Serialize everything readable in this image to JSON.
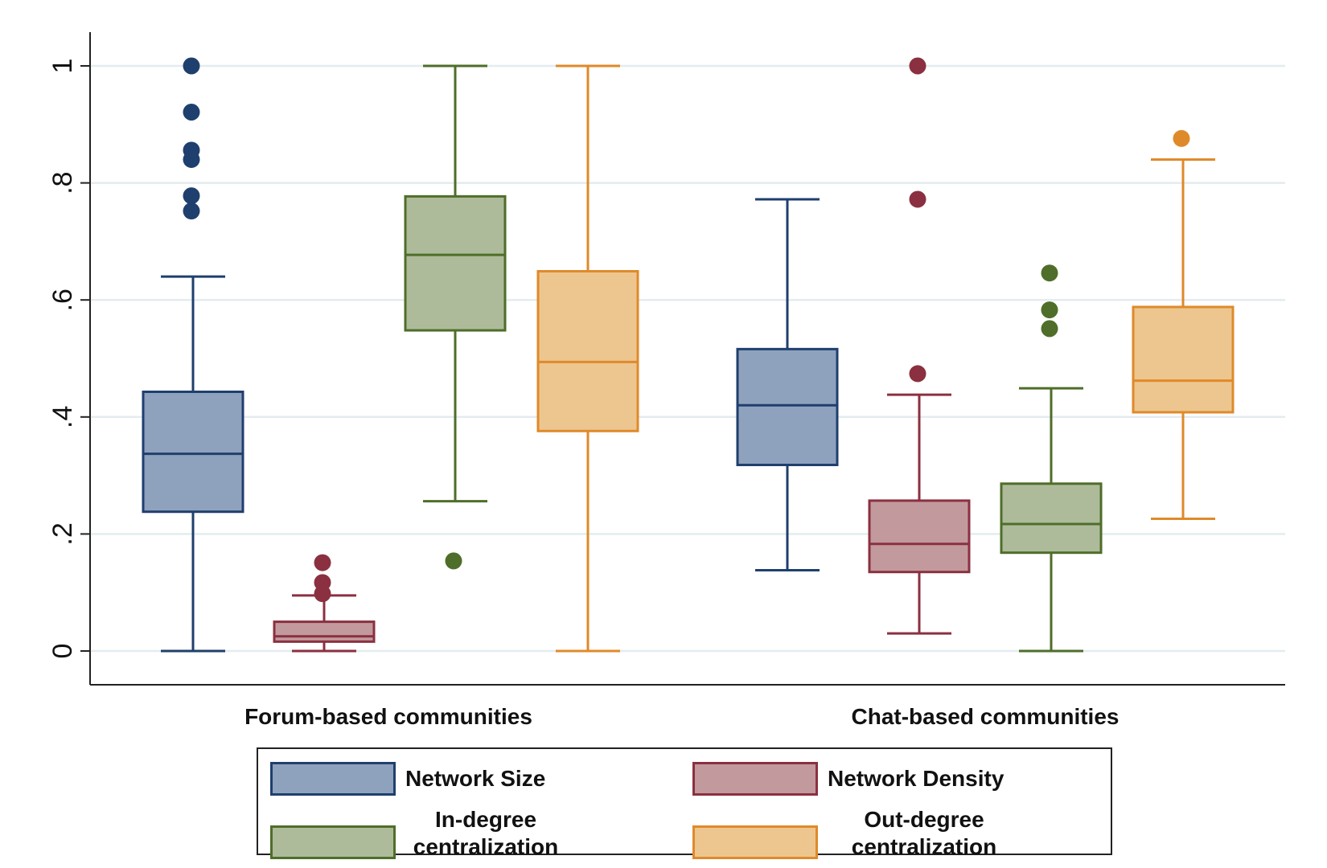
{
  "chart_data": {
    "type": "boxplot",
    "title": "",
    "xlabel": "",
    "ylabel": "",
    "ylim": [
      -0.06,
      1.06
    ],
    "yticks": [
      0,
      0.2,
      0.4,
      0.6,
      0.8,
      1
    ],
    "ytick_labels": [
      "0",
      ".2",
      ".4",
      ".6",
      ".8",
      "1"
    ],
    "grid": true,
    "legend_position": "bottom",
    "groups": [
      "Forum-based communities",
      "Chat-based communities"
    ],
    "series": [
      {
        "name": "Network Size",
        "label_lines": [
          "Network Size"
        ],
        "color": "#1f3f6e",
        "fill": "#8fa2bd",
        "boxes": [
          {
            "whisker_low": 0.0,
            "q1": 0.238,
            "median": 0.337,
            "q3": 0.443,
            "whisker_high": 0.64,
            "outliers": [
              0.752,
              0.778,
              0.84,
              0.856,
              0.921,
              1.0
            ]
          },
          {
            "whisker_low": 0.138,
            "q1": 0.318,
            "median": 0.42,
            "q3": 0.516,
            "whisker_high": 0.772,
            "outliers": []
          }
        ]
      },
      {
        "name": "Network Density",
        "label_lines": [
          "Network Density"
        ],
        "color": "#8b3040",
        "fill": "#c29a9e",
        "boxes": [
          {
            "whisker_low": 0.0,
            "q1": 0.016,
            "median": 0.025,
            "q3": 0.05,
            "whisker_high": 0.095,
            "outliers": [
              0.098,
              0.117,
              0.151
            ]
          },
          {
            "whisker_low": 0.03,
            "q1": 0.135,
            "median": 0.183,
            "q3": 0.257,
            "whisker_high": 0.438,
            "outliers": [
              0.474,
              0.772,
              1.0
            ]
          }
        ]
      },
      {
        "name": "In-degree centralization",
        "label_lines": [
          "In-degree",
          "centralization"
        ],
        "color": "#4e6e29",
        "fill": "#aebb9a",
        "boxes": [
          {
            "whisker_low": 0.256,
            "q1": 0.548,
            "median": 0.677,
            "q3": 0.777,
            "whisker_high": 1.0,
            "outliers": [
              0.154
            ]
          },
          {
            "whisker_low": 0.0,
            "q1": 0.168,
            "median": 0.217,
            "q3": 0.286,
            "whisker_high": 0.449,
            "outliers": [
              0.551,
              0.583,
              0.646
            ]
          }
        ]
      },
      {
        "name": "Out-degree centralization",
        "label_lines": [
          "Out-degree",
          "centralization"
        ],
        "color": "#df8a2a",
        "fill": "#edc68f",
        "boxes": [
          {
            "whisker_low": 0.0,
            "q1": 0.376,
            "median": 0.494,
            "q3": 0.649,
            "whisker_high": 1.0,
            "outliers": []
          },
          {
            "whisker_low": 0.226,
            "q1": 0.408,
            "median": 0.462,
            "q3": 0.588,
            "whisker_high": 0.84,
            "outliers": [
              0.876
            ]
          }
        ]
      }
    ]
  }
}
